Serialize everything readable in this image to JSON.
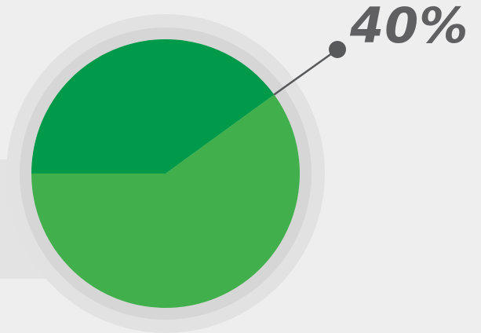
{
  "chart_data": {
    "type": "pie",
    "start_angle_deg": 180,
    "slices": [
      {
        "value": 40,
        "color": "#009a4a"
      },
      {
        "value": 60,
        "color": "#41b04c"
      }
    ],
    "annotation": {
      "text": "40%",
      "slice_index": 0
    }
  },
  "colors": {
    "background": "#eeeeee",
    "halo_outer": "#e2e2e2",
    "halo_inner": "#d6d6d6",
    "side_band": "#e3e3e3",
    "leader": "#58595b",
    "label": "#606062"
  }
}
